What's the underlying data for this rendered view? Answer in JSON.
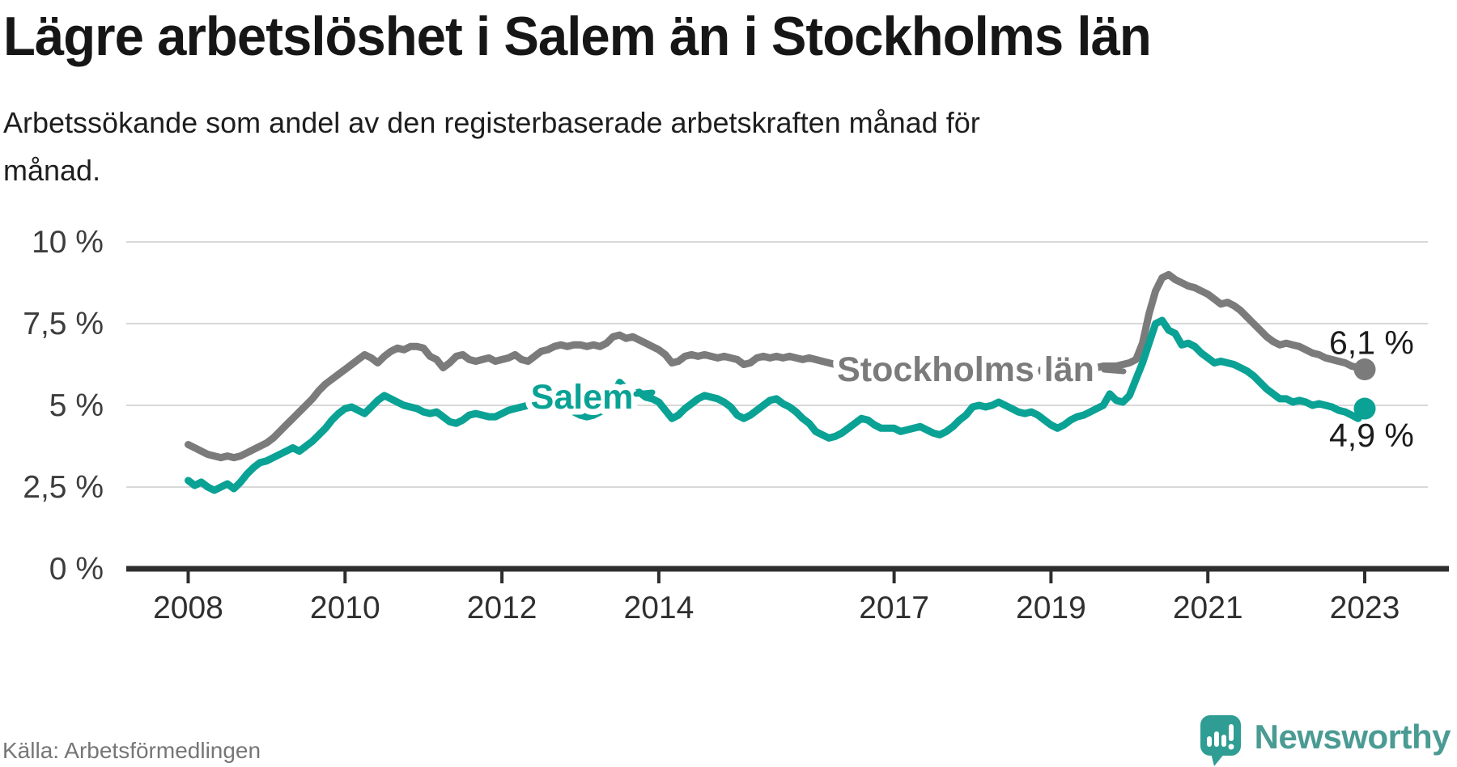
{
  "header": {
    "title": "Lägre arbetslöshet i Salem än i Stockholms län",
    "subtitle_lines": [
      "Arbetssökande som andel av den registerbaserade arbetskraften månad för",
      "månad."
    ]
  },
  "footer": {
    "source": "Källa: Arbetsförmedlingen",
    "brand": "Newsworthy",
    "brand_icon": "newsworthy-speech-bubble-bar-chart-icon",
    "brand_color": "#4a9b93",
    "brand_bubble_color": "#2f9d93"
  },
  "chart_data": {
    "type": "line",
    "title": "Lägre arbetslöshet i Salem än i Stockholms län",
    "x_unit": "month",
    "x_start": "2008-01",
    "x_end": "2023-01",
    "grid": "horizontal",
    "ylim": [
      0,
      10.5
    ],
    "yticks": [
      {
        "v": 10,
        "label": "10 %"
      },
      {
        "v": 7.5,
        "label": "7,5 %"
      },
      {
        "v": 5,
        "label": "5 %"
      },
      {
        "v": 2.5,
        "label": "2,5 %"
      },
      {
        "v": 0,
        "label": "0 %"
      }
    ],
    "xticks": [
      {
        "year": 2008,
        "label": "2008"
      },
      {
        "year": 2010,
        "label": "2010"
      },
      {
        "year": 2012,
        "label": "2012"
      },
      {
        "year": 2014,
        "label": "2014"
      },
      {
        "year": 2017,
        "label": "2017"
      },
      {
        "year": 2019,
        "label": "2019"
      },
      {
        "year": 2021,
        "label": "2021"
      },
      {
        "year": 2023,
        "label": "2023"
      }
    ],
    "series": [
      {
        "id": "stockholms-lan",
        "name": "Stockholms län",
        "color": "#7b7b7b",
        "end_label": "6,1 %",
        "end_value": 6.1,
        "values": [
          3.8,
          3.7,
          3.6,
          3.5,
          3.45,
          3.4,
          3.45,
          3.4,
          3.45,
          3.55,
          3.65,
          3.75,
          3.85,
          4.0,
          4.2,
          4.4,
          4.6,
          4.8,
          5.0,
          5.2,
          5.45,
          5.65,
          5.8,
          5.95,
          6.1,
          6.25,
          6.4,
          6.55,
          6.45,
          6.3,
          6.5,
          6.65,
          6.75,
          6.7,
          6.8,
          6.8,
          6.75,
          6.5,
          6.4,
          6.15,
          6.3,
          6.5,
          6.55,
          6.4,
          6.35,
          6.4,
          6.45,
          6.35,
          6.4,
          6.45,
          6.55,
          6.4,
          6.35,
          6.5,
          6.65,
          6.7,
          6.8,
          6.85,
          6.8,
          6.85,
          6.85,
          6.8,
          6.85,
          6.8,
          6.9,
          7.1,
          7.15,
          7.05,
          7.1,
          7.0,
          6.9,
          6.8,
          6.7,
          6.55,
          6.3,
          6.35,
          6.5,
          6.55,
          6.5,
          6.55,
          6.5,
          6.45,
          6.5,
          6.45,
          6.4,
          6.25,
          6.3,
          6.45,
          6.5,
          6.45,
          6.5,
          6.45,
          6.5,
          6.45,
          6.4,
          6.45,
          6.4,
          6.35,
          6.3,
          6.25,
          6.15,
          6.05,
          6.0,
          5.95,
          6.0,
          5.95,
          5.9,
          5.95,
          5.95,
          5.9,
          5.85,
          5.9,
          5.95,
          6.0,
          5.95,
          5.9,
          5.85,
          5.9,
          5.95,
          6.0,
          6.0,
          5.95,
          5.9,
          5.95,
          6.0,
          6.05,
          6.0,
          5.95,
          6.0,
          6.05,
          6.05,
          6.1,
          6.1,
          6.05,
          6.1,
          6.15,
          6.15,
          6.2,
          6.2,
          6.15,
          6.2,
          6.2,
          6.2,
          6.25,
          6.3,
          6.4,
          6.9,
          7.8,
          8.5,
          8.9,
          9.0,
          8.85,
          8.75,
          8.65,
          8.6,
          8.5,
          8.4,
          8.25,
          8.1,
          8.15,
          8.05,
          7.9,
          7.7,
          7.5,
          7.3,
          7.1,
          6.95,
          6.85,
          6.9,
          6.85,
          6.8,
          6.7,
          6.6,
          6.55,
          6.45,
          6.4,
          6.35,
          6.3,
          6.2,
          6.15,
          6.1
        ]
      },
      {
        "id": "salem",
        "name": "Salem",
        "color": "#0aa295",
        "end_label": "4,9 %",
        "end_value": 4.9,
        "values": [
          2.7,
          2.55,
          2.65,
          2.5,
          2.4,
          2.5,
          2.6,
          2.45,
          2.65,
          2.9,
          3.1,
          3.25,
          3.3,
          3.4,
          3.5,
          3.6,
          3.7,
          3.6,
          3.75,
          3.9,
          4.1,
          4.3,
          4.55,
          4.75,
          4.9,
          4.95,
          4.85,
          4.75,
          4.95,
          5.15,
          5.3,
          5.2,
          5.1,
          5.0,
          4.95,
          4.9,
          4.8,
          4.75,
          4.8,
          4.65,
          4.5,
          4.45,
          4.55,
          4.7,
          4.75,
          4.7,
          4.65,
          4.65,
          4.75,
          4.85,
          4.9,
          4.95,
          5.0,
          4.95,
          5.0,
          4.95,
          4.9,
          4.85,
          4.9,
          4.8,
          4.7,
          4.65,
          4.7,
          4.8,
          4.9,
          5.3,
          5.7,
          5.5,
          5.35,
          5.4,
          5.25,
          5.2,
          5.1,
          4.85,
          4.6,
          4.7,
          4.9,
          5.05,
          5.2,
          5.3,
          5.25,
          5.2,
          5.1,
          4.95,
          4.7,
          4.6,
          4.7,
          4.85,
          5.0,
          5.15,
          5.2,
          5.05,
          4.95,
          4.8,
          4.6,
          4.45,
          4.2,
          4.1,
          4.0,
          4.05,
          4.15,
          4.3,
          4.45,
          4.6,
          4.55,
          4.4,
          4.3,
          4.3,
          4.3,
          4.2,
          4.25,
          4.3,
          4.35,
          4.25,
          4.15,
          4.1,
          4.2,
          4.35,
          4.55,
          4.7,
          4.95,
          5.0,
          4.95,
          5.0,
          5.1,
          5.0,
          4.9,
          4.8,
          4.75,
          4.8,
          4.7,
          4.55,
          4.4,
          4.3,
          4.4,
          4.55,
          4.65,
          4.7,
          4.8,
          4.9,
          5.0,
          5.35,
          5.15,
          5.1,
          5.3,
          5.8,
          6.3,
          6.9,
          7.5,
          7.6,
          7.3,
          7.2,
          6.85,
          6.9,
          6.8,
          6.6,
          6.45,
          6.3,
          6.35,
          6.3,
          6.25,
          6.15,
          6.05,
          5.9,
          5.7,
          5.5,
          5.35,
          5.2,
          5.2,
          5.1,
          5.15,
          5.1,
          5.0,
          5.05,
          5.0,
          4.95,
          4.85,
          4.8,
          4.7,
          4.6,
          4.9
        ]
      }
    ],
    "colors": {
      "grid": "#d8d8d8",
      "axis": "#2e2e2e",
      "tick_label": "#2f2f2f",
      "value_label": "#1b1b1b"
    }
  }
}
